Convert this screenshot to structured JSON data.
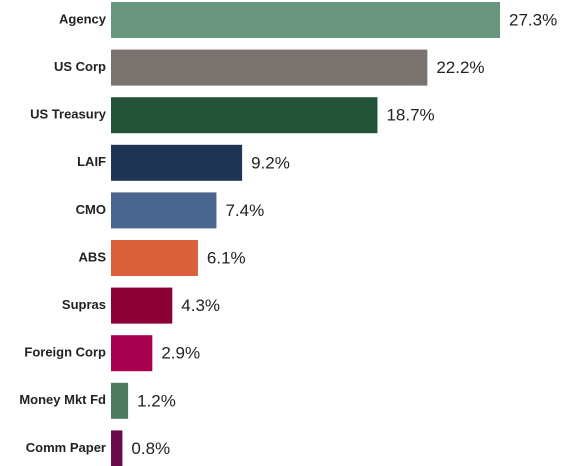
{
  "chart_data": {
    "type": "hbar",
    "categories": [
      "Agency",
      "US Corp",
      "US Treasury",
      "LAIF",
      "CMO",
      "ABS",
      "Supras",
      "Foreign Corp",
      "Money Mkt Fd",
      "Comm Paper"
    ],
    "values": [
      27.3,
      22.2,
      18.7,
      9.2,
      7.4,
      6.1,
      4.3,
      2.9,
      1.2,
      0.8
    ],
    "value_labels": [
      "27.3%",
      "22.2%",
      "18.7%",
      "9.2%",
      "7.4%",
      "6.1%",
      "4.3%",
      "2.9%",
      "1.2%",
      "0.8%"
    ],
    "colors": [
      "#6a957f",
      "#7a726e",
      "#235338",
      "#1f3556",
      "#4a6590",
      "#d9603a",
      "#8b0035",
      "#a8004e",
      "#4e7a60",
      "#6b0a48"
    ]
  }
}
